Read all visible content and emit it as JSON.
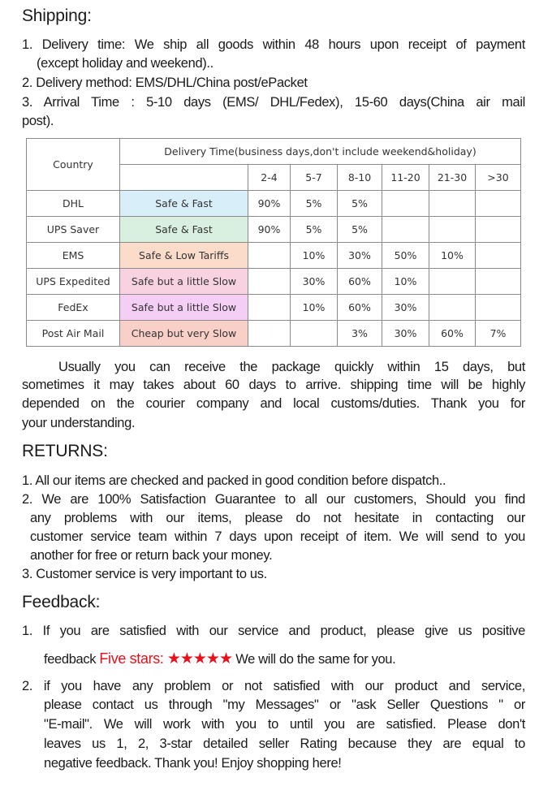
{
  "shipping": {
    "title": "Shipping:",
    "lines": [
      "1. Delivery time: We ship all goods within 48 hours upon receipt  of payment",
      "(except holiday and weekend)..",
      "2. Delivery method: EMS/DHL/China post/ePacket",
      "3. Arrival Time  : 5-10 days (EMS/ DHL/Fedex), 15-60 days(China air mail",
      "post)."
    ]
  },
  "table": {
    "country_header": "Country",
    "delivery_header": "Delivery Time(business days,don't include weekend&holiday)",
    "ranges": [
      "2-4",
      "5-7",
      "8-10",
      "11-20",
      "21-30",
      ">30"
    ],
    "rows": [
      {
        "carrier": "DHL",
        "note": "Safe & Fast",
        "color": "#d8eef8",
        "values": [
          "90%",
          "5%",
          "5%",
          "",
          "",
          ""
        ]
      },
      {
        "carrier": "UPS Saver",
        "note": "Safe & Fast",
        "color": "#d9f0e0",
        "values": [
          "90%",
          "5%",
          "5%",
          "",
          "",
          ""
        ]
      },
      {
        "carrier": "EMS",
        "note": "Safe & Low Tariffs",
        "color": "#fbdccb",
        "values": [
          "",
          "10%",
          "30%",
          "50%",
          "10%",
          ""
        ]
      },
      {
        "carrier": "UPS Expedited",
        "note": "Safe but a little Slow",
        "color": "#f9d2e2",
        "values": [
          "",
          "30%",
          "60%",
          "10%",
          "",
          ""
        ]
      },
      {
        "carrier": "FedEx",
        "note": "Safe but a little Slow",
        "color": "#f5cef5",
        "values": [
          "",
          "10%",
          "60%",
          "30%",
          "",
          ""
        ]
      },
      {
        "carrier": "Post Air Mail",
        "note": "Cheap but very Slow",
        "color": "#f9d0c8",
        "values": [
          "",
          "",
          "3%",
          "30%",
          "60%",
          "7%"
        ]
      }
    ]
  },
  "note_lines": [
    "Usually you can receive the package quickly within 15 days, but",
    "sometimes it may takes about 60 days to arrive. shipping time will be highly",
    "depended on the courier company and local customs/duties. Thank you for",
    "your understanding."
  ],
  "returns": {
    "title": "RETURNS:",
    "lines": [
      "1. All our items are checked and packed in good condition before dispatch..",
      "2. We are 100% Satisfaction Guarantee to all our customers,   Should you find",
      "any problems with our items, please do not hesitate in contacting our",
      "customer service team within 7 days upon receipt of item. We will send to you",
      "another for free or return back your money.",
      "3. Customer service is very important to us."
    ]
  },
  "feedback": {
    "title": "Feedback:",
    "item1_line1": "1.  If you are satisfied with our service and product, please give us positive",
    "item1_pre": "feedback ",
    "five_stars": "Five stars:",
    "stars": "★★★★★",
    "item1_post": "We will do the same for you.",
    "item2_lines": [
      "2.    if   you have any problem or not satisfied with our product and service,",
      "please contact us through \"my Messages\" or \"ask Seller Questions \" or",
      "\"E-mail\". We will work with you to until you are satisfied. Please don't",
      "leaves us 1, 2, 3-star detailed seller Rating because they are equal to",
      "negative feedback. Thank you! Enjoy shopping here!"
    ]
  }
}
